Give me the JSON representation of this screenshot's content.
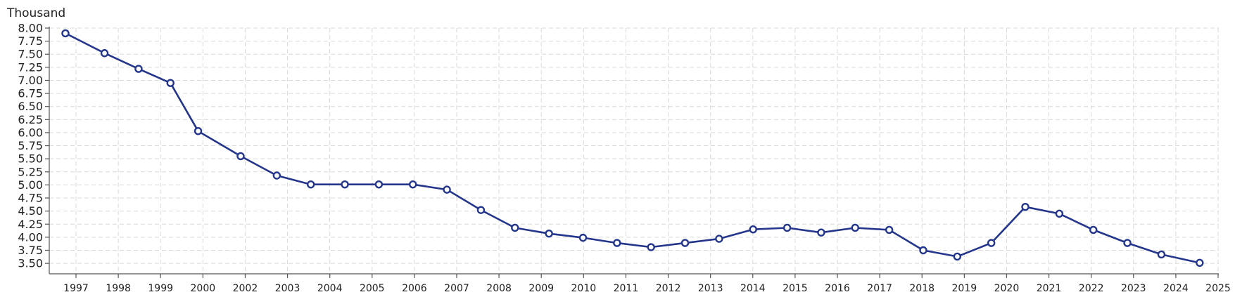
{
  "chart_data": {
    "type": "line",
    "unit_label": "Thousand",
    "ylim": [
      3.3,
      8.0
    ],
    "y_ticks": [
      "3.50",
      "3.75",
      "4.00",
      "4.25",
      "4.50",
      "4.75",
      "5.00",
      "5.25",
      "5.50",
      "5.75",
      "6.00",
      "6.25",
      "6.50",
      "6.75",
      "7.00",
      "7.25",
      "7.50",
      "7.75",
      "8.00"
    ],
    "x_ticks": [
      "1997",
      "1998",
      "1999",
      "2000",
      "2002",
      "2003",
      "2004",
      "2005",
      "2006",
      "2007",
      "2008",
      "2009",
      "2010",
      "2011",
      "2012",
      "2013",
      "2014",
      "2015",
      "2016",
      "2017",
      "2018",
      "2019",
      "2020",
      "2021",
      "2022",
      "2023",
      "2024",
      "2025"
    ],
    "grid": true,
    "colors": {
      "series": "#24368c",
      "grid": "#d9d9d9",
      "axis": "#555555"
    },
    "series": [
      {
        "points": [
          {
            "x": 1997.08,
            "y": 7.9
          },
          {
            "x": 1998.0,
            "y": 7.52
          },
          {
            "x": 1998.8,
            "y": 7.22
          },
          {
            "x": 1999.55,
            "y": 6.95
          },
          {
            "x": 2000.2,
            "y": 6.03
          },
          {
            "x": 2001.2,
            "y": 5.55
          },
          {
            "x": 2002.05,
            "y": 5.18
          },
          {
            "x": 2002.85,
            "y": 5.01
          },
          {
            "x": 2003.65,
            "y": 5.01
          },
          {
            "x": 2004.45,
            "y": 5.01
          },
          {
            "x": 2005.25,
            "y": 5.01
          },
          {
            "x": 2006.05,
            "y": 4.91
          },
          {
            "x": 2006.85,
            "y": 4.52
          },
          {
            "x": 2007.65,
            "y": 4.18
          },
          {
            "x": 2008.45,
            "y": 4.07
          },
          {
            "x": 2009.25,
            "y": 3.99
          },
          {
            "x": 2010.05,
            "y": 3.89
          },
          {
            "x": 2010.85,
            "y": 3.81
          },
          {
            "x": 2011.65,
            "y": 3.89
          },
          {
            "x": 2012.45,
            "y": 3.97
          },
          {
            "x": 2013.25,
            "y": 4.15
          },
          {
            "x": 2014.05,
            "y": 4.18
          },
          {
            "x": 2014.85,
            "y": 4.09
          },
          {
            "x": 2015.65,
            "y": 4.18
          },
          {
            "x": 2016.45,
            "y": 4.14
          },
          {
            "x": 2017.25,
            "y": 3.75
          },
          {
            "x": 2018.05,
            "y": 3.63
          },
          {
            "x": 2018.85,
            "y": 3.89
          },
          {
            "x": 2019.65,
            "y": 4.58
          },
          {
            "x": 2020.45,
            "y": 4.45
          },
          {
            "x": 2021.25,
            "y": 4.14
          },
          {
            "x": 2022.05,
            "y": 3.89
          },
          {
            "x": 2022.85,
            "y": 3.67
          },
          {
            "x": 2023.75,
            "y": 3.51
          }
        ]
      }
    ]
  }
}
